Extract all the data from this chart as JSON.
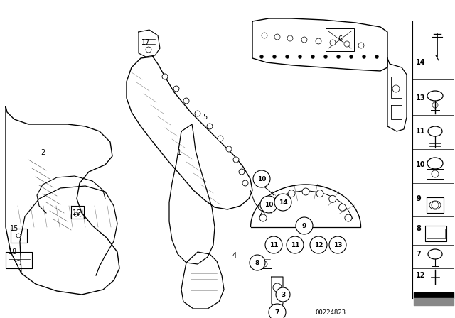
{
  "bg_color": "#ffffff",
  "fig_width": 6.4,
  "fig_height": 4.48,
  "dpi": 100,
  "diagram_code": "00224823",
  "lc": "#000000",
  "tc": "#000000"
}
